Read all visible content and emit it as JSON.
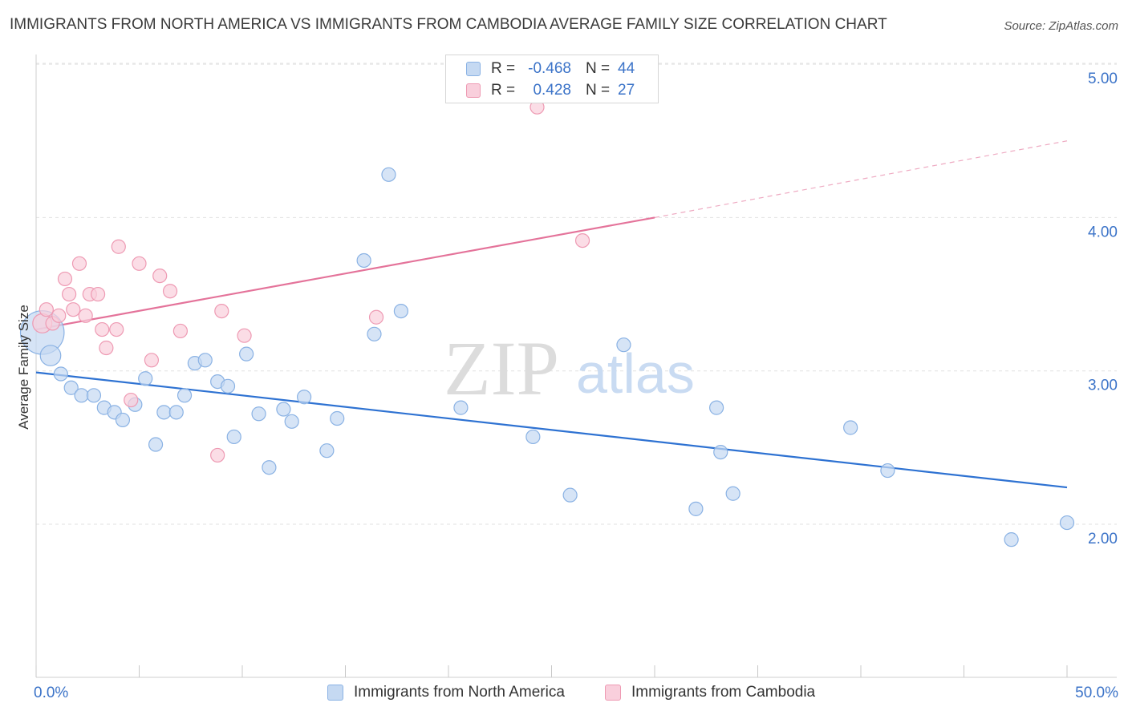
{
  "title": "IMMIGRANTS FROM NORTH AMERICA VS IMMIGRANTS FROM CAMBODIA AVERAGE FAMILY SIZE CORRELATION CHART",
  "source": "Source: ZipAtlas.com",
  "watermark": {
    "zip": "ZIP",
    "atlas": "atlas"
  },
  "colors": {
    "blue_fill": "#c5d9f2",
    "blue_stroke": "#8ab2e4",
    "blue_line": "#2e72d2",
    "pink_fill": "#f9cfdc",
    "pink_stroke": "#ee9ab3",
    "pink_line": "#e4739a",
    "value_text": "#3b73c8",
    "grid": "#e2e2e2"
  },
  "legend": {
    "rows": [
      {
        "r_label": "R =",
        "r_value": "-0.468",
        "n_label": "N =",
        "n_value": "44"
      },
      {
        "r_label": "R =",
        "r_value": "0.428",
        "n_label": "N =",
        "n_value": "27"
      }
    ]
  },
  "chart_data": {
    "type": "scatter",
    "xlabel": "",
    "ylabel": "Average Family Size",
    "x_tick_labels": [
      "0.0%",
      "50.0%"
    ],
    "y_tick_labels": [
      "2.00",
      "3.00",
      "4.00",
      "5.00"
    ],
    "xlim": [
      0,
      50
    ],
    "ylim": [
      1.0,
      5.1
    ],
    "grid": true,
    "legend_position": "bottom",
    "series": [
      {
        "name": "Immigrants from North America",
        "color": "blue",
        "points": [
          [
            0.3,
            3.25,
            3.2
          ],
          [
            0.7,
            3.1,
            1.5
          ],
          [
            1.2,
            2.98,
            1
          ],
          [
            1.7,
            2.89,
            1
          ],
          [
            2.2,
            2.84,
            1
          ],
          [
            2.8,
            2.84,
            1
          ],
          [
            3.3,
            2.76,
            1
          ],
          [
            3.8,
            2.73,
            1
          ],
          [
            4.2,
            2.68,
            1
          ],
          [
            4.8,
            2.78,
            1
          ],
          [
            5.3,
            2.95,
            1
          ],
          [
            5.8,
            2.52,
            1
          ],
          [
            6.2,
            2.73,
            1
          ],
          [
            6.8,
            2.73,
            1
          ],
          [
            7.2,
            2.84,
            1
          ],
          [
            7.7,
            3.05,
            1
          ],
          [
            8.2,
            3.07,
            1
          ],
          [
            8.8,
            2.93,
            1
          ],
          [
            9.3,
            2.9,
            1
          ],
          [
            9.6,
            2.57,
            1
          ],
          [
            10.2,
            3.11,
            1
          ],
          [
            10.8,
            2.72,
            1
          ],
          [
            11.3,
            2.37,
            1
          ],
          [
            12.0,
            2.75,
            1
          ],
          [
            12.4,
            2.67,
            1
          ],
          [
            13.0,
            2.83,
            1
          ],
          [
            14.1,
            2.48,
            1
          ],
          [
            14.6,
            2.69,
            1
          ],
          [
            15.9,
            3.72,
            1
          ],
          [
            16.4,
            3.24,
            1
          ],
          [
            17.1,
            4.28,
            1
          ],
          [
            17.7,
            3.39,
            1
          ],
          [
            20.6,
            2.76,
            1
          ],
          [
            24.1,
            2.57,
            1
          ],
          [
            25.9,
            2.19,
            1
          ],
          [
            28.5,
            3.17,
            1
          ],
          [
            32.0,
            2.1,
            1
          ],
          [
            33.0,
            2.76,
            1
          ],
          [
            33.2,
            2.47,
            1
          ],
          [
            33.8,
            2.2,
            1
          ],
          [
            39.5,
            2.63,
            1
          ],
          [
            41.3,
            2.35,
            1
          ],
          [
            47.3,
            1.9,
            1
          ],
          [
            50.0,
            2.01,
            1
          ]
        ],
        "trend": {
          "x": [
            0,
            50
          ],
          "y": [
            2.99,
            2.24
          ]
        }
      },
      {
        "name": "Immigrants from Cambodia",
        "color": "pink",
        "points": [
          [
            0.3,
            3.31,
            1.4
          ],
          [
            0.5,
            3.4,
            1
          ],
          [
            0.8,
            3.31,
            1
          ],
          [
            1.1,
            3.36,
            1
          ],
          [
            1.4,
            3.6,
            1
          ],
          [
            1.6,
            3.5,
            1
          ],
          [
            1.8,
            3.4,
            1
          ],
          [
            2.1,
            3.7,
            1
          ],
          [
            2.4,
            3.36,
            1
          ],
          [
            2.6,
            3.5,
            1
          ],
          [
            3.0,
            3.5,
            1
          ],
          [
            3.2,
            3.27,
            1
          ],
          [
            3.4,
            3.15,
            1
          ],
          [
            3.9,
            3.27,
            1
          ],
          [
            4.0,
            3.81,
            1
          ],
          [
            4.6,
            2.81,
            1
          ],
          [
            5.0,
            3.7,
            1
          ],
          [
            5.6,
            3.07,
            1
          ],
          [
            6.0,
            3.62,
            1
          ],
          [
            6.5,
            3.52,
            1
          ],
          [
            7.0,
            3.26,
            1
          ],
          [
            8.8,
            2.45,
            1
          ],
          [
            9.0,
            3.39,
            1
          ],
          [
            10.1,
            3.23,
            1
          ],
          [
            16.5,
            3.35,
            1
          ],
          [
            24.3,
            4.72,
            1
          ],
          [
            26.5,
            3.85,
            1
          ]
        ],
        "trend": {
          "x": [
            0,
            30
          ],
          "y": [
            3.27,
            4.0
          ]
        },
        "trend_extension": {
          "x": [
            30,
            50
          ],
          "y": [
            4.0,
            4.5
          ]
        }
      }
    ]
  },
  "bottom_legend": {
    "items": [
      {
        "label": "Immigrants from North America"
      },
      {
        "label": "Immigrants from Cambodia"
      }
    ]
  }
}
